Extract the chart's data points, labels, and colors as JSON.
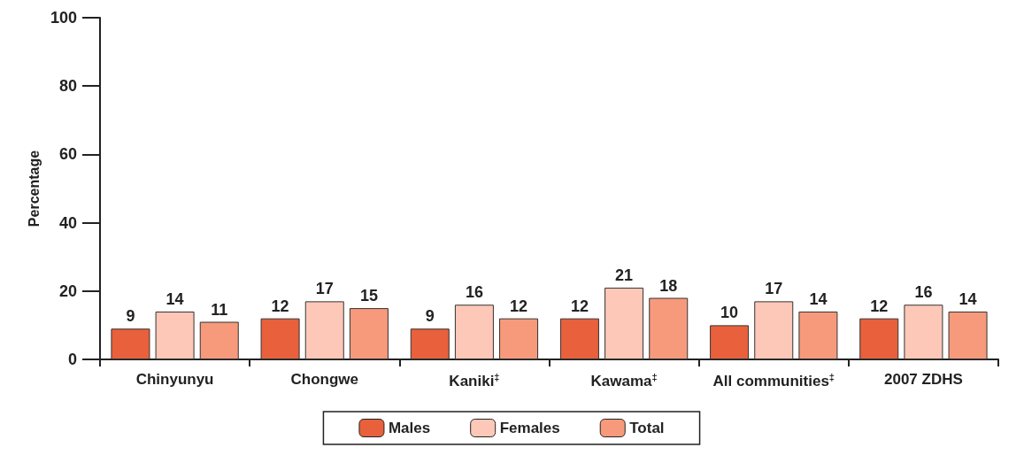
{
  "chart_data": {
    "type": "bar",
    "ylabel": "Percentage",
    "categories": [
      "Chinyunyu",
      "Chongwe",
      "Kaniki$^{‡}$",
      "Kawama$^{‡}$",
      "All communities$^{‡}$",
      "2007 ZDHS"
    ],
    "series": [
      {
        "name": "Males",
        "color": "#e8603c",
        "values": [
          9,
          12,
          9,
          12,
          10,
          12
        ]
      },
      {
        "name": "Females",
        "color": "#fdc8b8",
        "values": [
          14,
          17,
          16,
          21,
          17,
          16
        ]
      },
      {
        "name": "Total",
        "color": "#f79a7c",
        "values": [
          11,
          15,
          12,
          18,
          14,
          14
        ]
      }
    ],
    "ylim": [
      0,
      100
    ],
    "yticks": [
      0,
      20,
      40,
      60,
      80,
      100
    ],
    "grid": false,
    "legend": "bottom",
    "data_labels": true
  }
}
